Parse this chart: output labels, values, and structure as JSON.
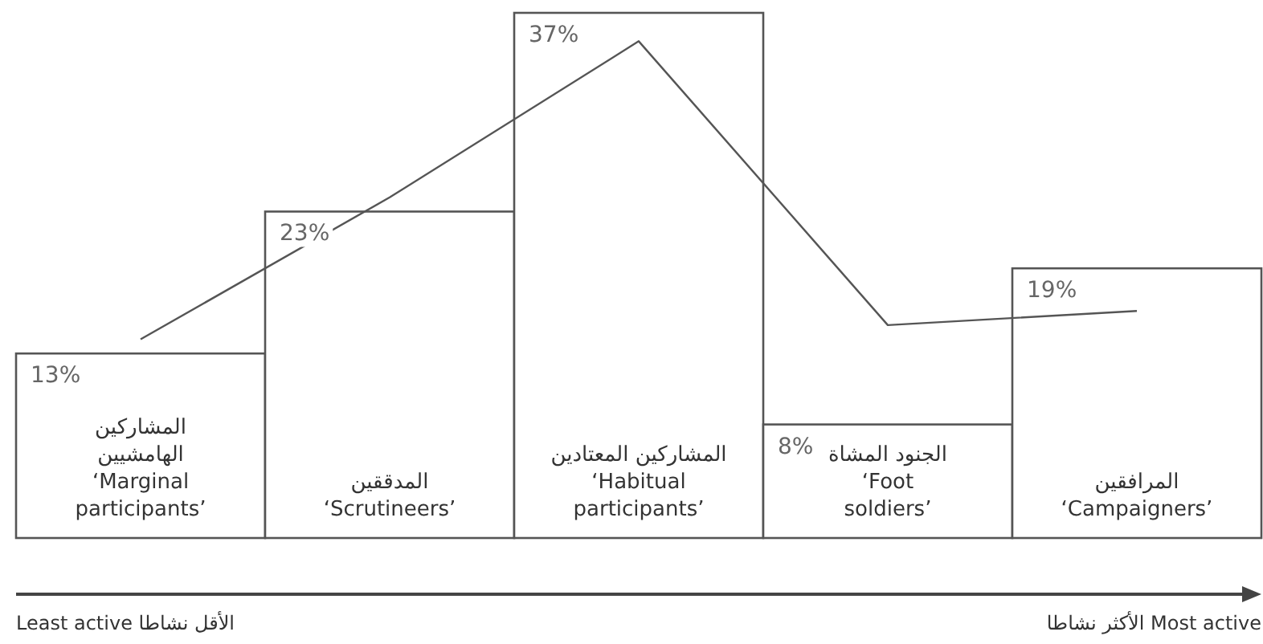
{
  "chart_data": {
    "type": "bar",
    "categories": [
      "المشاركين\nالهامشيين\n‘Marginal\nparticipants’",
      "المدققين\n‘Scrutineers’",
      "المشاركين المعتادين\n‘Habitual\nparticipants’",
      "الجنود المشاة\n‘Foot\nsoldiers’",
      "المرافقين\n‘Campaigners’"
    ],
    "series": [
      {
        "color": "#ffffff",
        "values": [
          13,
          23,
          37,
          8,
          19
        ],
        "value_labels": [
          "13%",
          "23%",
          "37%",
          "8%",
          "19%"
        ]
      },
      {
        "type": "line",
        "color": "#555555",
        "values": [
          14,
          24,
          35,
          15,
          16
        ]
      }
    ],
    "annotations": [
      "Least active الأقل نشاطا",
      "الأكثر نشاطا Most active"
    ]
  }
}
